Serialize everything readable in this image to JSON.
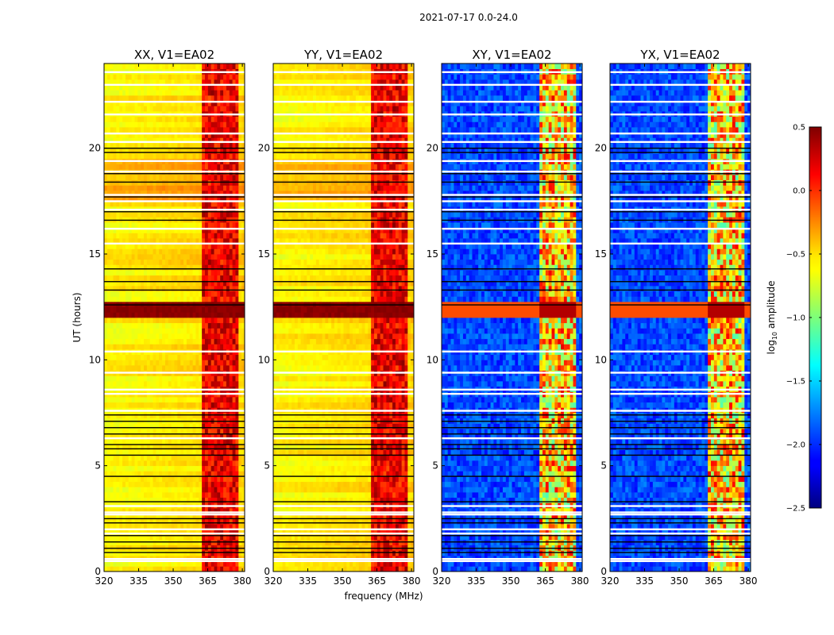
{
  "chart_data": {
    "type": "heatmap",
    "title": "2021-07-17 0.0-24.0",
    "xlabel": "frequency (MHz)",
    "ylabel": "UT (hours)",
    "xlim": [
      320,
      381
    ],
    "ylim": [
      0,
      24
    ],
    "x_ticks": [
      320,
      335,
      350,
      365,
      380
    ],
    "y_ticks": [
      0,
      5,
      10,
      15,
      20
    ],
    "panels": [
      {
        "name": "XX",
        "title": "XX, V1=EA02",
        "kind": "auto"
      },
      {
        "name": "YY",
        "title": "YY, V1=EA02",
        "kind": "auto"
      },
      {
        "name": "XY",
        "title": "XY, V1=EA02",
        "kind": "cross"
      },
      {
        "name": "YX",
        "title": "YX, V1=EA02",
        "kind": "cross"
      }
    ],
    "colorbar": {
      "label": "log10 amplitude",
      "label_main": "log",
      "label_sub": "10",
      "label_rest": " amplitude",
      "range": [
        -2.5,
        0.5
      ],
      "ticks": [
        0.5,
        0.0,
        -0.5,
        -1.0,
        -1.5,
        -2.0,
        -2.5
      ],
      "tick_labels": [
        "0.5",
        "0.0",
        "−0.5",
        "−1.0",
        "−1.5",
        "−2.0",
        "−2.5"
      ],
      "colormap": "jet"
    },
    "features": {
      "strong_rfi_band_mhz": [
        362,
        379
      ],
      "bright_time_band_hours": [
        11.9,
        12.8
      ],
      "white_gap_rows_hours": [
        0.5,
        0.6,
        1.8,
        2.0,
        2.7,
        2.8,
        3.1,
        6.3,
        7.6,
        8.4,
        8.6,
        9.4,
        10.4,
        15.5,
        16.2,
        17.1,
        17.5,
        17.8,
        18.9,
        19.4,
        20.3,
        20.7,
        21.6,
        22.2,
        23.0,
        23.6
      ],
      "black_line_rows_hours": [
        0.9,
        1.1,
        1.4,
        1.7,
        2.3,
        2.5,
        3.3,
        4.5,
        5.5,
        5.8,
        6.0,
        6.5,
        6.8,
        7.1,
        7.4,
        12.6,
        13.3,
        13.7,
        14.3,
        16.6,
        17.0,
        17.7,
        18.4,
        18.8,
        19.8,
        20.0
      ]
    }
  }
}
